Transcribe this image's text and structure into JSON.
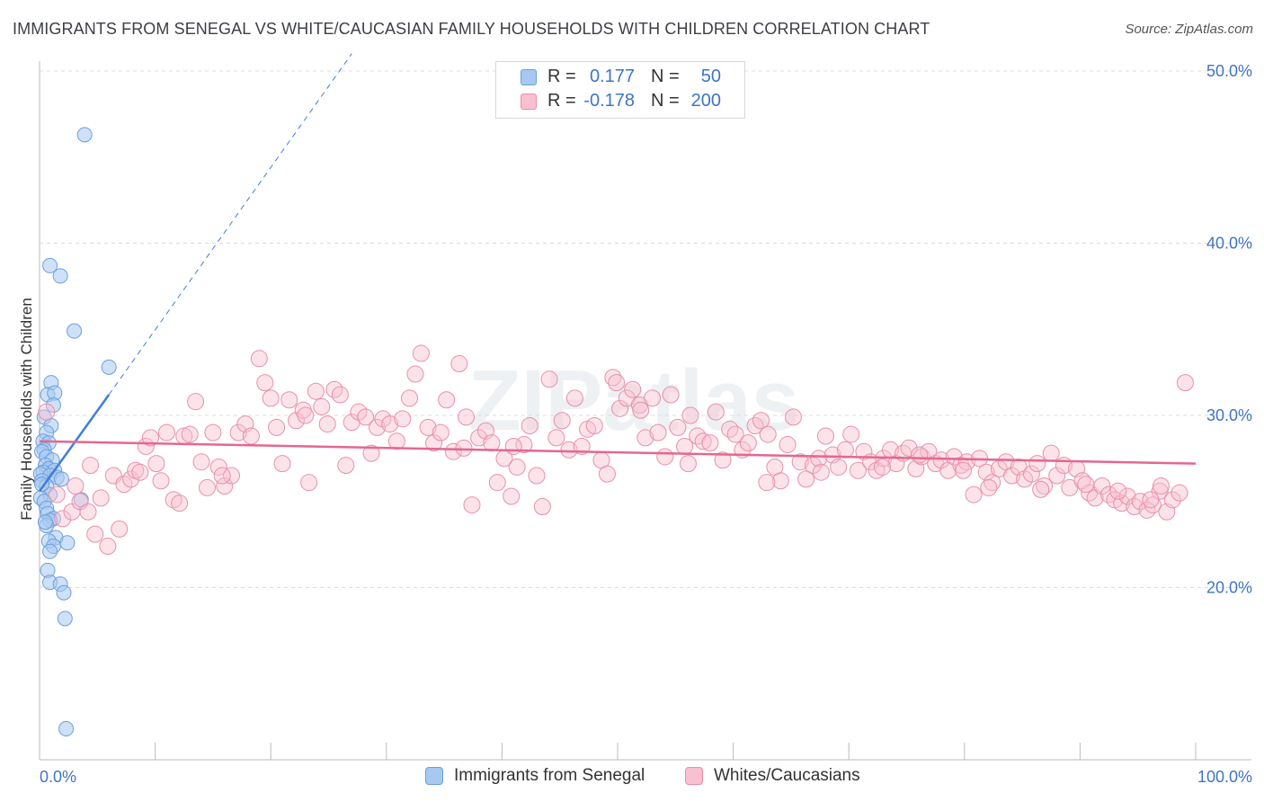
{
  "title": "IMMIGRANTS FROM SENEGAL VS WHITE/CAUCASIAN FAMILY HOUSEHOLDS WITH CHILDREN CORRELATION CHART",
  "source": "Source: ZipAtlas.com",
  "watermark": "ZIPatlas",
  "stats": [
    {
      "r_label": "R =",
      "r_value": "0.177",
      "n_label": "N =",
      "n_value": "50",
      "color": "#a8c8f0",
      "border": "#6a9fe0"
    },
    {
      "r_label": "R =",
      "r_value": "-0.178",
      "n_label": "N =",
      "n_value": "200",
      "color": "#f8c0d0",
      "border": "#e890a8"
    }
  ],
  "legend": [
    {
      "label": "Immigrants from Senegal",
      "color": "#a8c8f0",
      "border": "#6a9fe0"
    },
    {
      "label": "Whites/Caucasians",
      "color": "#f8c0d0",
      "border": "#e890a8"
    }
  ],
  "chart_data": {
    "type": "scatter",
    "title": "IMMIGRANTS FROM SENEGAL VS WHITE/CAUCASIAN FAMILY HOUSEHOLDS WITH CHILDREN CORRELATION CHART",
    "xlabel": "",
    "ylabel": "Family Households with Children",
    "xlim": [
      0,
      100
    ],
    "ylim": [
      10,
      52
    ],
    "x_ticks": [
      {
        "value": 0,
        "label": "0.0%"
      },
      {
        "value": 100,
        "label": "100.0%"
      }
    ],
    "y_ticks": [
      {
        "value": 20,
        "label": "20.0%"
      },
      {
        "value": 30,
        "label": "30.0%"
      },
      {
        "value": 40,
        "label": "40.0%"
      },
      {
        "value": 50,
        "label": "50.0%"
      }
    ],
    "grid": "horizontal-dashed",
    "legend_position": "bottom-center",
    "series": [
      {
        "name": "Immigrants from Senegal",
        "color": "#6a9fe0",
        "trend": {
          "x": [
            0,
            6.0
          ],
          "y": [
            25.6,
            31.2
          ],
          "extended_to": {
            "x": 27,
            "y": 51.0
          }
        },
        "points": [
          [
            3.9,
            46.3
          ],
          [
            0.9,
            38.7
          ],
          [
            1.8,
            38.1
          ],
          [
            3.0,
            34.9
          ],
          [
            6.0,
            32.8
          ],
          [
            1.0,
            31.9
          ],
          [
            0.7,
            31.2
          ],
          [
            1.3,
            31.3
          ],
          [
            1.2,
            30.6
          ],
          [
            0.4,
            29.9
          ],
          [
            1.0,
            29.4
          ],
          [
            0.6,
            29.0
          ],
          [
            0.3,
            28.5
          ],
          [
            0.8,
            28.4
          ],
          [
            0.4,
            28.0
          ],
          [
            0.2,
            27.9
          ],
          [
            0.6,
            27.6
          ],
          [
            1.1,
            27.4
          ],
          [
            0.5,
            27.1
          ],
          [
            0.8,
            26.9
          ],
          [
            1.3,
            26.8
          ],
          [
            0.3,
            26.7
          ],
          [
            0.1,
            26.6
          ],
          [
            0.9,
            26.5
          ],
          [
            1.5,
            26.4
          ],
          [
            1.9,
            26.3
          ],
          [
            0.2,
            26.2
          ],
          [
            0.6,
            25.9
          ],
          [
            0.9,
            25.4
          ],
          [
            0.1,
            25.2
          ],
          [
            3.6,
            25.1
          ],
          [
            0.4,
            25.0
          ],
          [
            0.6,
            24.6
          ],
          [
            0.7,
            24.3
          ],
          [
            1.2,
            24.0
          ],
          [
            0.9,
            23.9
          ],
          [
            0.6,
            23.6
          ],
          [
            1.4,
            22.9
          ],
          [
            0.8,
            22.7
          ],
          [
            2.4,
            22.6
          ],
          [
            1.2,
            22.4
          ],
          [
            0.9,
            22.1
          ],
          [
            0.7,
            21.0
          ],
          [
            0.9,
            20.3
          ],
          [
            1.8,
            20.2
          ],
          [
            2.1,
            19.7
          ],
          [
            2.2,
            18.2
          ],
          [
            2.3,
            11.8
          ],
          [
            0.2,
            26.0
          ],
          [
            0.5,
            23.8
          ]
        ]
      },
      {
        "name": "Whites/Caucasians",
        "color": "#e87ca0",
        "trend": {
          "x": [
            0,
            100
          ],
          "y": [
            28.5,
            27.2
          ]
        },
        "points": [
          [
            0.6,
            30.2
          ],
          [
            1.5,
            25.4
          ],
          [
            2.0,
            24.0
          ],
          [
            2.8,
            24.4
          ],
          [
            3.5,
            25.0
          ],
          [
            4.2,
            24.4
          ],
          [
            4.4,
            27.1
          ],
          [
            4.8,
            23.1
          ],
          [
            5.3,
            25.2
          ],
          [
            5.9,
            22.4
          ],
          [
            6.4,
            26.5
          ],
          [
            6.9,
            23.4
          ],
          [
            7.3,
            26.0
          ],
          [
            7.9,
            26.3
          ],
          [
            8.3,
            26.8
          ],
          [
            8.7,
            26.7
          ],
          [
            9.2,
            28.2
          ],
          [
            9.6,
            28.7
          ],
          [
            10.1,
            27.2
          ],
          [
            10.5,
            26.2
          ],
          [
            11.0,
            29.0
          ],
          [
            11.6,
            25.1
          ],
          [
            12.1,
            24.9
          ],
          [
            12.5,
            28.8
          ],
          [
            13.0,
            28.9
          ],
          [
            13.5,
            30.8
          ],
          [
            14.0,
            27.3
          ],
          [
            14.5,
            25.8
          ],
          [
            15.0,
            29.0
          ],
          [
            15.5,
            27.0
          ],
          [
            16.0,
            25.9
          ],
          [
            16.6,
            26.5
          ],
          [
            17.2,
            29.0
          ],
          [
            17.8,
            29.5
          ],
          [
            18.3,
            28.8
          ],
          [
            19.0,
            33.3
          ],
          [
            19.5,
            31.9
          ],
          [
            20.0,
            31.0
          ],
          [
            20.5,
            29.3
          ],
          [
            21.0,
            27.2
          ],
          [
            21.6,
            30.9
          ],
          [
            22.2,
            29.7
          ],
          [
            22.8,
            30.3
          ],
          [
            23.3,
            26.1
          ],
          [
            23.9,
            31.4
          ],
          [
            24.4,
            30.5
          ],
          [
            24.9,
            29.5
          ],
          [
            25.5,
            31.5
          ],
          [
            26.0,
            31.2
          ],
          [
            26.5,
            27.1
          ],
          [
            27.0,
            29.6
          ],
          [
            27.6,
            30.2
          ],
          [
            28.2,
            29.9
          ],
          [
            28.7,
            27.8
          ],
          [
            29.2,
            29.3
          ],
          [
            29.7,
            29.8
          ],
          [
            30.3,
            29.5
          ],
          [
            30.9,
            28.5
          ],
          [
            31.4,
            29.8
          ],
          [
            32.0,
            31.0
          ],
          [
            32.5,
            32.4
          ],
          [
            33.0,
            33.6
          ],
          [
            33.6,
            29.3
          ],
          [
            34.1,
            28.4
          ],
          [
            34.7,
            29.0
          ],
          [
            35.2,
            30.9
          ],
          [
            35.8,
            27.9
          ],
          [
            36.3,
            33.0
          ],
          [
            36.9,
            29.9
          ],
          [
            37.4,
            24.8
          ],
          [
            38.0,
            28.7
          ],
          [
            38.6,
            29.1
          ],
          [
            39.1,
            28.4
          ],
          [
            39.6,
            26.1
          ],
          [
            40.2,
            27.5
          ],
          [
            40.8,
            25.3
          ],
          [
            41.3,
            27.0
          ],
          [
            41.9,
            28.3
          ],
          [
            42.4,
            29.4
          ],
          [
            43.0,
            26.5
          ],
          [
            43.5,
            24.7
          ],
          [
            44.1,
            32.1
          ],
          [
            44.7,
            28.7
          ],
          [
            45.2,
            29.7
          ],
          [
            45.8,
            28.0
          ],
          [
            46.3,
            31.0
          ],
          [
            46.9,
            28.2
          ],
          [
            47.4,
            29.2
          ],
          [
            48.0,
            29.4
          ],
          [
            48.6,
            27.4
          ],
          [
            49.1,
            26.6
          ],
          [
            49.6,
            32.2
          ],
          [
            50.2,
            30.4
          ],
          [
            50.8,
            31.0
          ],
          [
            51.3,
            31.5
          ],
          [
            51.9,
            30.6
          ],
          [
            52.4,
            28.7
          ],
          [
            53.0,
            31.0
          ],
          [
            53.5,
            29.0
          ],
          [
            54.1,
            27.6
          ],
          [
            54.6,
            31.2
          ],
          [
            55.2,
            29.3
          ],
          [
            55.8,
            28.2
          ],
          [
            56.3,
            30.0
          ],
          [
            56.9,
            28.8
          ],
          [
            57.4,
            28.5
          ],
          [
            58.0,
            28.4
          ],
          [
            58.5,
            30.2
          ],
          [
            59.1,
            27.4
          ],
          [
            59.7,
            29.2
          ],
          [
            60.2,
            28.9
          ],
          [
            60.8,
            28.0
          ],
          [
            61.3,
            28.4
          ],
          [
            61.9,
            29.4
          ],
          [
            62.4,
            29.7
          ],
          [
            63.0,
            28.9
          ],
          [
            63.6,
            27.0
          ],
          [
            64.1,
            26.2
          ],
          [
            64.7,
            28.3
          ],
          [
            65.2,
            29.9
          ],
          [
            65.8,
            27.3
          ],
          [
            66.3,
            26.3
          ],
          [
            66.9,
            27.1
          ],
          [
            67.4,
            27.5
          ],
          [
            68.0,
            28.8
          ],
          [
            68.6,
            27.7
          ],
          [
            69.1,
            27.0
          ],
          [
            69.7,
            28.0
          ],
          [
            70.2,
            28.9
          ],
          [
            70.8,
            26.8
          ],
          [
            71.3,
            27.9
          ],
          [
            71.9,
            27.3
          ],
          [
            72.4,
            26.8
          ],
          [
            73.0,
            27.5
          ],
          [
            73.6,
            28.0
          ],
          [
            74.1,
            27.2
          ],
          [
            74.7,
            27.8
          ],
          [
            75.2,
            28.1
          ],
          [
            75.8,
            26.9
          ],
          [
            76.3,
            27.6
          ],
          [
            76.9,
            27.9
          ],
          [
            77.5,
            27.2
          ],
          [
            78.0,
            27.4
          ],
          [
            78.6,
            26.8
          ],
          [
            79.1,
            27.6
          ],
          [
            79.7,
            27.1
          ],
          [
            80.2,
            27.3
          ],
          [
            80.8,
            25.4
          ],
          [
            81.3,
            27.5
          ],
          [
            81.9,
            26.7
          ],
          [
            82.4,
            26.1
          ],
          [
            83.0,
            26.9
          ],
          [
            83.6,
            27.3
          ],
          [
            84.1,
            26.5
          ],
          [
            84.7,
            27.0
          ],
          [
            85.2,
            26.3
          ],
          [
            85.8,
            26.6
          ],
          [
            86.3,
            27.2
          ],
          [
            86.9,
            25.9
          ],
          [
            87.5,
            27.8
          ],
          [
            88.0,
            26.5
          ],
          [
            88.6,
            27.1
          ],
          [
            89.1,
            25.8
          ],
          [
            89.7,
            26.9
          ],
          [
            90.2,
            26.2
          ],
          [
            90.8,
            25.5
          ],
          [
            91.3,
            25.2
          ],
          [
            91.9,
            25.9
          ],
          [
            92.5,
            25.4
          ],
          [
            93.0,
            25.1
          ],
          [
            93.6,
            24.9
          ],
          [
            94.1,
            25.3
          ],
          [
            94.7,
            24.7
          ],
          [
            95.2,
            25.0
          ],
          [
            95.8,
            24.5
          ],
          [
            96.3,
            24.8
          ],
          [
            96.9,
            25.6
          ],
          [
            97.5,
            24.4
          ],
          [
            98.0,
            25.1
          ],
          [
            98.6,
            25.5
          ],
          [
            99.1,
            31.9
          ],
          [
            15.8,
            26.5
          ],
          [
            23.0,
            30.0
          ],
          [
            41.0,
            28.2
          ],
          [
            52.0,
            30.3
          ],
          [
            62.9,
            26.1
          ],
          [
            72.9,
            27.0
          ],
          [
            79.9,
            26.8
          ],
          [
            86.6,
            25.7
          ],
          [
            93.3,
            25.6
          ],
          [
            97.0,
            25.9
          ],
          [
            3.1,
            25.9
          ],
          [
            36.7,
            28.1
          ],
          [
            49.9,
            31.9
          ],
          [
            56.1,
            27.2
          ],
          [
            67.6,
            26.7
          ],
          [
            76.1,
            27.7
          ],
          [
            82.1,
            25.8
          ],
          [
            90.5,
            26.0
          ],
          [
            96.1,
            25.1
          ]
        ]
      }
    ]
  }
}
